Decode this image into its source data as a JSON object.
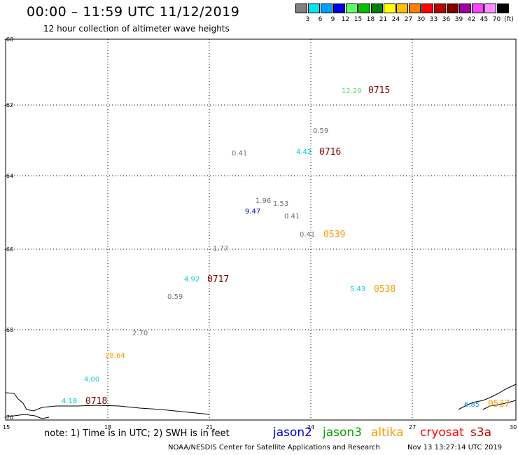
{
  "header": {
    "title": "00:00 – 11:59 UTC 11/12/2019",
    "subtitle": "12 hour collection of altimeter wave heights"
  },
  "legend": {
    "unit": "(ft)",
    "items": [
      {
        "label": "3",
        "color": "#808080"
      },
      {
        "label": "6",
        "color": "#00e5ee"
      },
      {
        "label": "9",
        "color": "#00a0ff"
      },
      {
        "label": "12",
        "color": "#0000e0"
      },
      {
        "label": "15",
        "color": "#60ff60"
      },
      {
        "label": "18",
        "color": "#00c000"
      },
      {
        "label": "21",
        "color": "#008000"
      },
      {
        "label": "24",
        "color": "#ffff00"
      },
      {
        "label": "27",
        "color": "#ffc000"
      },
      {
        "label": "30",
        "color": "#ff8000"
      },
      {
        "label": "33",
        "color": "#ff0000"
      },
      {
        "label": "36",
        "color": "#c00000"
      },
      {
        "label": "39",
        "color": "#800000"
      },
      {
        "label": "42",
        "color": "#a000a0"
      },
      {
        "label": "45",
        "color": "#ff40ff"
      },
      {
        "label": "70",
        "color": "#ff90ff"
      },
      {
        "label": "",
        "color": "#000000"
      }
    ]
  },
  "axes": {
    "lat_labels": [
      "-60",
      "-62",
      "-64",
      "-66",
      "-68",
      "-70"
    ],
    "lon_labels": [
      "15",
      "18",
      "21",
      "24",
      "27",
      "30"
    ]
  },
  "observations": [
    {
      "text": "12.29",
      "color": "#60e060"
    },
    {
      "text": "0715",
      "color": "#800000",
      "orbit": true
    },
    {
      "text": "0.59",
      "color": "#707070"
    },
    {
      "text": "0.41",
      "color": "#707070"
    },
    {
      "text": "4.42",
      "color": "#00d0d0"
    },
    {
      "text": "0716",
      "color": "#800000",
      "orbit": true
    },
    {
      "text": "1.96",
      "color": "#707070"
    },
    {
      "text": "1.53",
      "color": "#707070"
    },
    {
      "text": "9.47",
      "color": "#0000c0"
    },
    {
      "text": "0.41",
      "color": "#707070"
    },
    {
      "text": "0.41",
      "color": "#707070"
    },
    {
      "text": "0539",
      "color": "#ff9900",
      "orbit": true
    },
    {
      "text": "1.77",
      "color": "#707070"
    },
    {
      "text": "4.92",
      "color": "#00d0d0"
    },
    {
      "text": "0717",
      "color": "#800000",
      "orbit": true
    },
    {
      "text": "5.43",
      "color": "#00d0d0"
    },
    {
      "text": "0538",
      "color": "#ff9900",
      "orbit": true
    },
    {
      "text": "0.59",
      "color": "#707070"
    },
    {
      "text": "2.70",
      "color": "#707070"
    },
    {
      "text": "28.64",
      "color": "#ff9900"
    },
    {
      "text": "4.00",
      "color": "#00d0d0"
    },
    {
      "text": "4.18",
      "color": "#00d0d0"
    },
    {
      "text": "0718",
      "color": "#800000",
      "orbit": true
    },
    {
      "text": "6.85",
      "color": "#00a0ff"
    },
    {
      "text": "0537",
      "color": "#ff9900",
      "orbit": true
    }
  ],
  "footer": {
    "note": "note: 1) Time is in UTC; 2) SWH is in feet",
    "satellites": [
      {
        "name": "jason2",
        "color": "#0000d0"
      },
      {
        "name": "jason3",
        "color": "#00a000"
      },
      {
        "name": "altika",
        "color": "#ff9900"
      },
      {
        "name": "cryosat",
        "color": "#ff0000"
      },
      {
        "name": "s3a",
        "color": "#c00000"
      }
    ],
    "credit_left": "NOAA/NESDIS Center for Satellite Applications and Research",
    "credit_right": "Nov 13 13:27:14 UTC 2019"
  }
}
